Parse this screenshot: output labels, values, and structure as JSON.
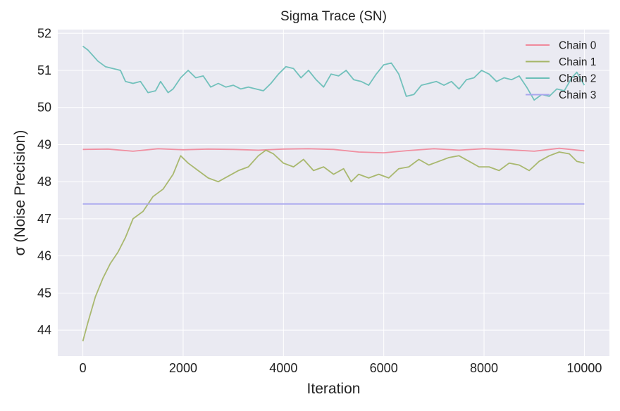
{
  "chart_data": {
    "type": "line",
    "title": "Sigma Trace (SN)",
    "xlabel": "Iteration",
    "ylabel": "σ (Noise Precision)",
    "xlim": [
      -500,
      10500
    ],
    "ylim": [
      43.3,
      52.1
    ],
    "xticks": [
      0,
      2000,
      4000,
      6000,
      8000,
      10000
    ],
    "yticks": [
      44,
      45,
      46,
      47,
      48,
      49,
      50,
      51,
      52
    ],
    "xtick_labels": [
      "0",
      "2000",
      "4000",
      "6000",
      "8000",
      "10000"
    ],
    "ytick_labels": [
      "44",
      "45",
      "46",
      "47",
      "48",
      "49",
      "50",
      "51",
      "52"
    ],
    "grid": true,
    "legend_position": "top-right",
    "series": [
      {
        "name": "Chain 0",
        "color": "#f08a9c",
        "x": [
          0,
          500,
          1000,
          1500,
          2000,
          2500,
          3000,
          3500,
          4000,
          4500,
          5000,
          5500,
          6000,
          6500,
          7000,
          7500,
          8000,
          8500,
          9000,
          9500,
          10000
        ],
        "values": [
          48.87,
          48.88,
          48.82,
          48.89,
          48.86,
          48.88,
          48.87,
          48.85,
          48.88,
          48.89,
          48.87,
          48.8,
          48.78,
          48.84,
          48.89,
          48.85,
          48.89,
          48.86,
          48.82,
          48.9,
          48.83
        ]
      },
      {
        "name": "Chain 1",
        "color": "#a5b567",
        "x": [
          0,
          100,
          250,
          400,
          550,
          700,
          850,
          1000,
          1200,
          1400,
          1600,
          1800,
          1950,
          2100,
          2300,
          2500,
          2700,
          2900,
          3100,
          3300,
          3500,
          3650,
          3800,
          4000,
          4200,
          4400,
          4600,
          4800,
          5000,
          5200,
          5350,
          5500,
          5700,
          5900,
          6100,
          6300,
          6500,
          6700,
          6900,
          7100,
          7300,
          7500,
          7700,
          7900,
          8100,
          8300,
          8500,
          8700,
          8900,
          9100,
          9300,
          9500,
          9700,
          9850,
          10000
        ],
        "values": [
          43.7,
          44.2,
          44.9,
          45.4,
          45.8,
          46.1,
          46.5,
          47.0,
          47.2,
          47.6,
          47.8,
          48.2,
          48.7,
          48.5,
          48.3,
          48.1,
          48.0,
          48.15,
          48.3,
          48.4,
          48.7,
          48.85,
          48.75,
          48.5,
          48.4,
          48.6,
          48.3,
          48.4,
          48.2,
          48.35,
          48.0,
          48.2,
          48.1,
          48.2,
          48.1,
          48.35,
          48.4,
          48.6,
          48.45,
          48.55,
          48.65,
          48.7,
          48.55,
          48.4,
          48.4,
          48.3,
          48.5,
          48.45,
          48.3,
          48.55,
          48.7,
          48.8,
          48.75,
          48.55,
          48.5
        ]
      },
      {
        "name": "Chain 2",
        "color": "#6bbfb8",
        "x": [
          0,
          100,
          200,
          300,
          450,
          600,
          750,
          850,
          1000,
          1150,
          1300,
          1450,
          1550,
          1700,
          1800,
          1950,
          2100,
          2250,
          2400,
          2550,
          2700,
          2850,
          3000,
          3150,
          3300,
          3450,
          3600,
          3750,
          3900,
          4050,
          4200,
          4350,
          4500,
          4650,
          4800,
          4950,
          5100,
          5250,
          5400,
          5550,
          5700,
          5850,
          6000,
          6150,
          6300,
          6450,
          6600,
          6750,
          6900,
          7050,
          7200,
          7350,
          7500,
          7650,
          7800,
          7950,
          8100,
          8250,
          8400,
          8550,
          8700,
          8850,
          9000,
          9150,
          9300,
          9450,
          9600,
          9750,
          9850,
          10000
        ],
        "values": [
          51.65,
          51.55,
          51.4,
          51.25,
          51.1,
          51.05,
          51.0,
          50.7,
          50.65,
          50.7,
          50.4,
          50.45,
          50.7,
          50.4,
          50.5,
          50.8,
          51.0,
          50.8,
          50.85,
          50.55,
          50.65,
          50.55,
          50.6,
          50.5,
          50.55,
          50.5,
          50.45,
          50.65,
          50.9,
          51.1,
          51.05,
          50.8,
          51.0,
          50.75,
          50.55,
          50.9,
          50.85,
          51.0,
          50.75,
          50.7,
          50.6,
          50.9,
          51.15,
          51.2,
          50.9,
          50.3,
          50.35,
          50.6,
          50.65,
          50.7,
          50.6,
          50.7,
          50.5,
          50.75,
          50.8,
          51.0,
          50.9,
          50.7,
          50.8,
          50.75,
          50.85,
          50.55,
          50.2,
          50.35,
          50.3,
          50.5,
          50.45,
          50.8,
          50.95,
          50.6
        ]
      },
      {
        "name": "Chain 3",
        "color": "#a9a6ee",
        "x": [
          0,
          10000
        ],
        "values": [
          47.4,
          47.4
        ]
      }
    ]
  }
}
